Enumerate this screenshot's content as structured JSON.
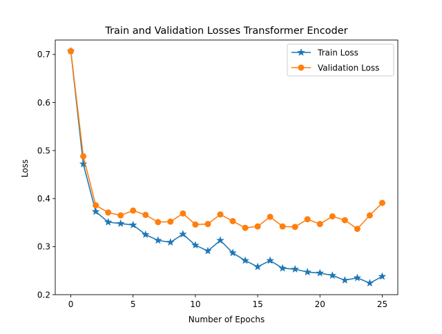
{
  "chart_data": {
    "type": "line",
    "title": "Train and Validation Losses Transformer Encoder",
    "xlabel": "Number of Epochs",
    "ylabel": "Loss",
    "xlim": [
      -1.25,
      26.25
    ],
    "ylim": [
      0.2,
      0.73
    ],
    "xticks": [
      0,
      5,
      10,
      15,
      20,
      25
    ],
    "yticks": [
      0.2,
      0.3,
      0.4,
      0.5,
      0.6,
      0.7
    ],
    "grid": false,
    "legend_position": "upper right",
    "x": [
      0,
      1,
      2,
      3,
      4,
      5,
      6,
      7,
      8,
      9,
      10,
      11,
      12,
      13,
      14,
      15,
      16,
      17,
      18,
      19,
      20,
      21,
      22,
      23,
      24,
      25
    ],
    "series": [
      {
        "name": "Train Loss",
        "color": "#1f77b4",
        "marker": "star",
        "values": [
          0.707,
          0.472,
          0.373,
          0.351,
          0.348,
          0.345,
          0.325,
          0.313,
          0.309,
          0.326,
          0.303,
          0.291,
          0.313,
          0.287,
          0.271,
          0.258,
          0.271,
          0.255,
          0.253,
          0.247,
          0.245,
          0.24,
          0.23,
          0.235,
          0.224,
          0.238
        ]
      },
      {
        "name": "Validation Loss",
        "color": "#ff7f0e",
        "marker": "circle",
        "values": [
          0.707,
          0.488,
          0.386,
          0.371,
          0.365,
          0.375,
          0.366,
          0.351,
          0.352,
          0.369,
          0.346,
          0.347,
          0.367,
          0.353,
          0.339,
          0.342,
          0.362,
          0.342,
          0.341,
          0.357,
          0.347,
          0.363,
          0.355,
          0.337,
          0.365,
          0.391
        ]
      }
    ]
  }
}
